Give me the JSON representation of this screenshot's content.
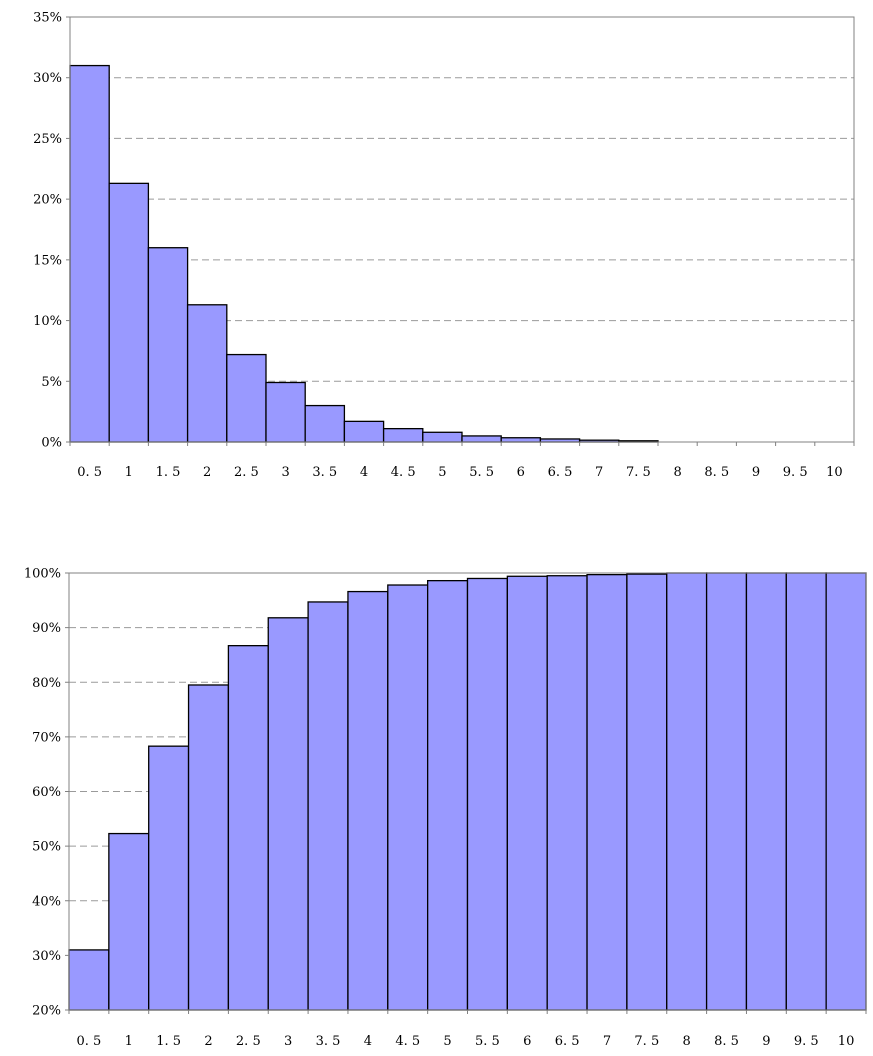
{
  "chart_data": [
    {
      "type": "bar",
      "title": "",
      "xlabel": "",
      "ylabel": "",
      "categories": [
        "0. 5",
        "1",
        "1. 5",
        "2",
        "2. 5",
        "3",
        "3. 5",
        "4",
        "4. 5",
        "5",
        "5. 5",
        "6",
        "6. 5",
        "7",
        "7. 5",
        "8",
        "8. 5",
        "9",
        "9. 5",
        "10"
      ],
      "values": [
        31.0,
        21.3,
        16.0,
        11.3,
        7.2,
        4.9,
        3.0,
        1.7,
        1.1,
        0.8,
        0.5,
        0.35,
        0.25,
        0.15,
        0.1,
        0,
        0,
        0,
        0,
        0
      ],
      "ylim": [
        0,
        35
      ],
      "yticks": [
        0,
        5,
        10,
        15,
        20,
        25,
        30,
        35
      ],
      "ytick_labels": [
        "0%",
        "5%",
        "10%",
        "15%",
        "20%",
        "25%",
        "30%",
        "35%"
      ],
      "grid": true,
      "bar_color": "#9999ff"
    },
    {
      "type": "bar",
      "title": "",
      "xlabel": "",
      "ylabel": "",
      "categories": [
        "0. 5",
        "1",
        "1. 5",
        "2",
        "2. 5",
        "3",
        "3. 5",
        "4",
        "4. 5",
        "5",
        "5. 5",
        "6",
        "6. 5",
        "7",
        "7. 5",
        "8",
        "8. 5",
        "9",
        "9. 5",
        "10"
      ],
      "values": [
        31.0,
        52.3,
        68.3,
        79.5,
        86.7,
        91.8,
        94.7,
        96.6,
        97.8,
        98.6,
        99.0,
        99.4,
        99.5,
        99.7,
        99.8,
        100,
        100,
        100,
        100,
        100
      ],
      "ylim": [
        20,
        100
      ],
      "yticks": [
        20,
        30,
        40,
        50,
        60,
        70,
        80,
        90,
        100
      ],
      "ytick_labels": [
        "20%",
        "30%",
        "40%",
        "50%",
        "60%",
        "70%",
        "80%",
        "90%",
        "100%"
      ],
      "grid": true,
      "bar_color": "#9999ff"
    }
  ]
}
